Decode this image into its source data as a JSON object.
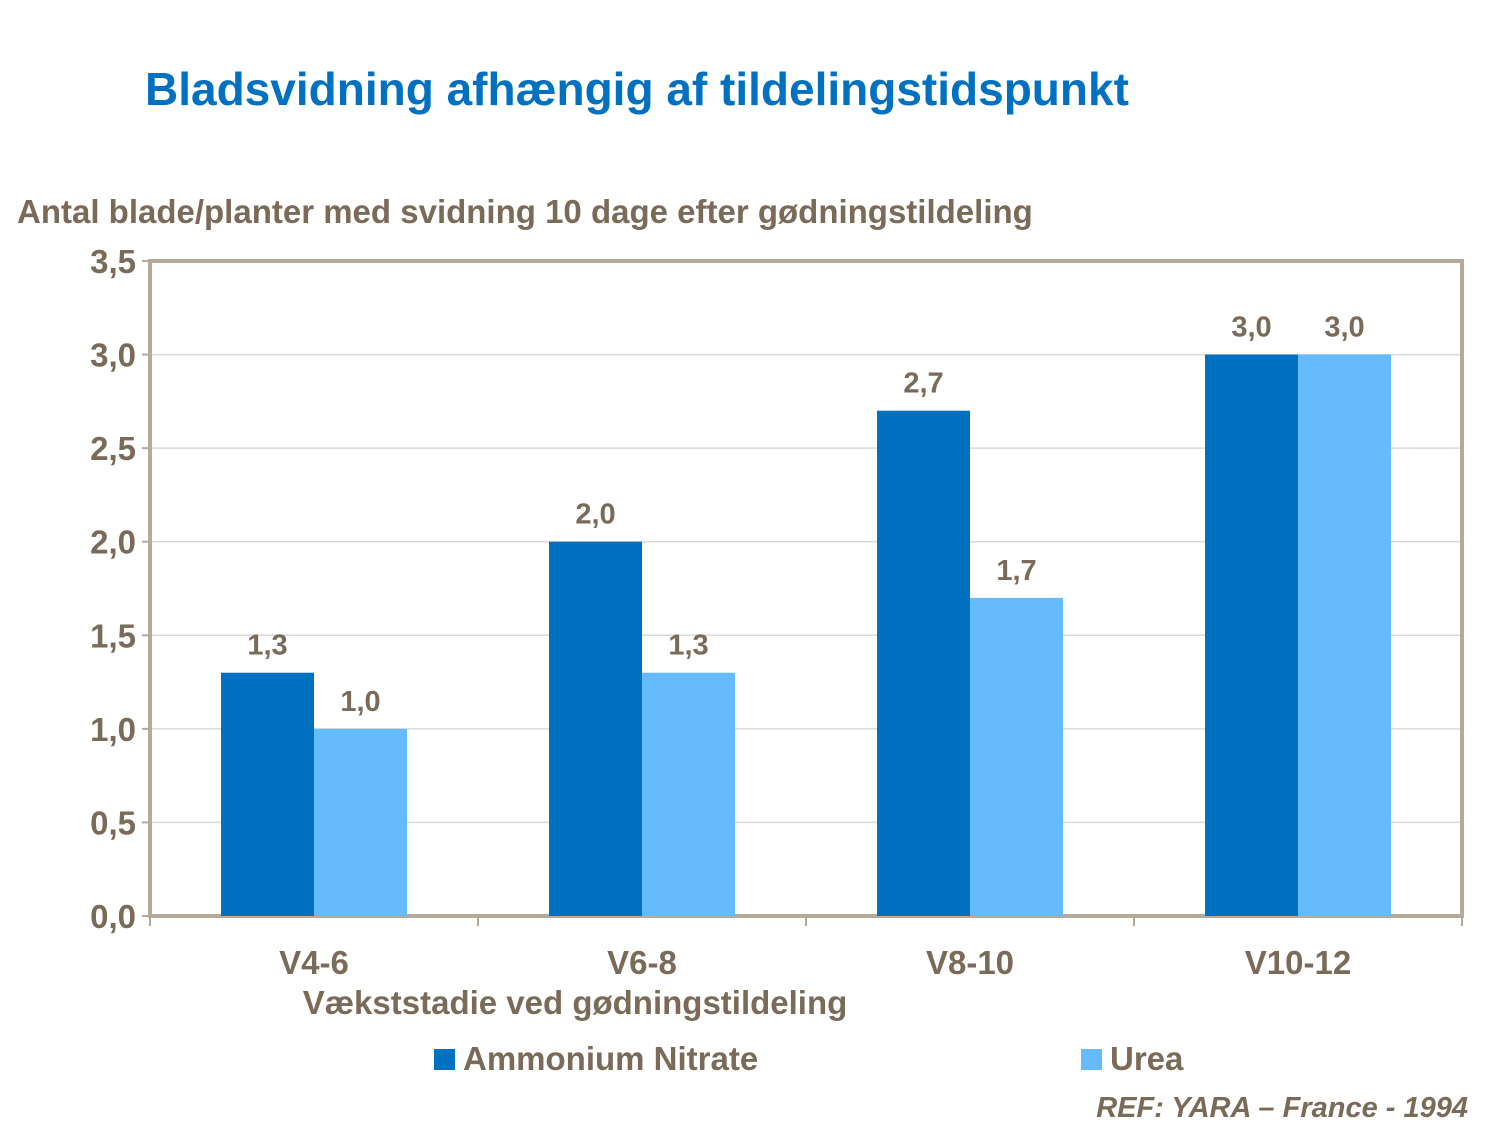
{
  "title": "Bladsvidning afhængig af tildelingstidspunkt",
  "chart_data": {
    "type": "bar",
    "title": "Bladsvidning afhængig af tildelingstidspunkt",
    "ylabel": "Antal blade/planter med svidning 10 dage efter gødningstildeling",
    "xlabel": "Vækststadie ved gødningstildeling",
    "categories": [
      "V4-6",
      "V6-8",
      "V8-10",
      "V10-12"
    ],
    "series": [
      {
        "name": "Ammonium Nitrate",
        "color": "#0070c0",
        "values": [
          1.3,
          2.0,
          2.7,
          3.0
        ],
        "labels": [
          "1,3",
          "2,0",
          "2,7",
          "3,0"
        ]
      },
      {
        "name": "Urea",
        "color": "#66bbff",
        "values": [
          1.0,
          1.3,
          1.7,
          3.0
        ],
        "labels": [
          "1,0",
          "1,3",
          "1,7",
          "3,0"
        ]
      }
    ],
    "ylim": [
      0,
      3.5
    ],
    "yticks": [
      0,
      0.5,
      1,
      1.5,
      2,
      2.5,
      3,
      3.5
    ],
    "ytick_labels": [
      "0,0",
      "0,5",
      "1,0",
      "1,5",
      "2,0",
      "2,5",
      "3,0",
      "3,5"
    ],
    "grid": true,
    "legend": "bottom"
  },
  "reference": "REF: YARA – France - 1994"
}
